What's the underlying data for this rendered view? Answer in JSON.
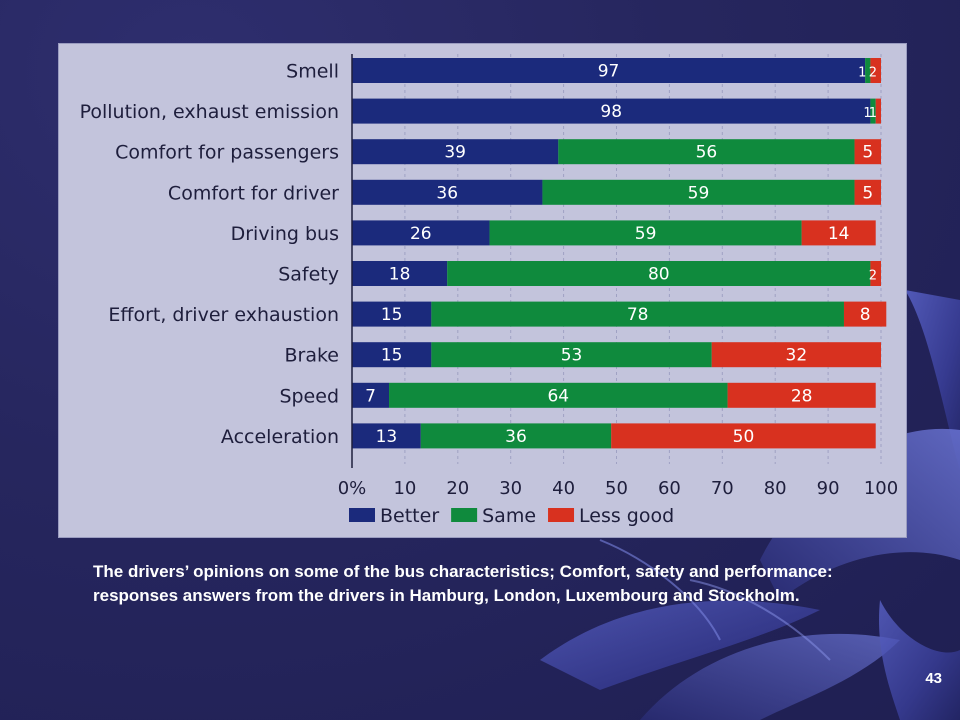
{
  "slide": {
    "caption": "The drivers’ opinions on some of the bus characteristics; Comfort, safety and performance: responses answers from the drivers in Hamburg, London, Luxembourg and Stockholm.",
    "page_number": "43"
  },
  "colors": {
    "better": "#1b2a7c",
    "same": "#0f8a3d",
    "less_good": "#d8311f",
    "panel": "#c3c4dc",
    "background": "#26265e"
  },
  "chart_data": {
    "type": "bar",
    "orientation": "horizontal",
    "stacked": true,
    "title": "",
    "xlabel": "",
    "ylabel": "",
    "xlim": [
      0,
      100
    ],
    "x_tick_labels": [
      "0%",
      "10",
      "20",
      "30",
      "40",
      "50",
      "60",
      "70",
      "80",
      "90",
      "100"
    ],
    "categories": [
      "Smell",
      "Pollution, exhaust emission",
      "Comfort for passengers",
      "Comfort for driver",
      "Driving bus",
      "Safety",
      "Effort, driver exhaustion",
      "Brake",
      "Speed",
      "Acceleration"
    ],
    "series": [
      {
        "name": "Better",
        "color": "#1b2a7c",
        "values": [
          97,
          98,
          39,
          36,
          26,
          18,
          15,
          15,
          7,
          13
        ]
      },
      {
        "name": "Same",
        "color": "#0f8a3d",
        "values": [
          1,
          1,
          56,
          59,
          59,
          80,
          78,
          53,
          64,
          36
        ]
      },
      {
        "name": "Less good",
        "color": "#d8311f",
        "values": [
          2,
          1,
          5,
          5,
          14,
          2,
          8,
          32,
          28,
          50
        ]
      }
    ],
    "legend": "bottom",
    "grid": "vertical-dashed"
  }
}
